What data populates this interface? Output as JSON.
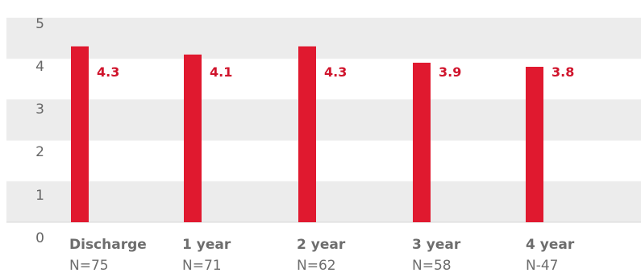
{
  "chart_data": {
    "type": "bar",
    "categories": [
      "Discharge",
      "1 year",
      "2 year",
      "3 year",
      "4 year"
    ],
    "sample_sizes": [
      "N=75",
      "N=71",
      "N=62",
      "N=58",
      "N-47"
    ],
    "values": [
      4.3,
      4.1,
      4.3,
      3.9,
      3.8
    ],
    "value_labels": [
      "4.3",
      "4.1",
      "4.3",
      "3.9",
      "3.8"
    ],
    "ylim": [
      0,
      5
    ],
    "yticks": [
      "0",
      "1",
      "2",
      "3",
      "4",
      "5"
    ],
    "title": "",
    "xlabel": "",
    "ylabel": "",
    "grid": "alternating horizontal bands",
    "colors": {
      "bar": "#e0192f",
      "value_label": "#d0142c",
      "band": "#ececec",
      "text": "#6d6d6d"
    }
  }
}
